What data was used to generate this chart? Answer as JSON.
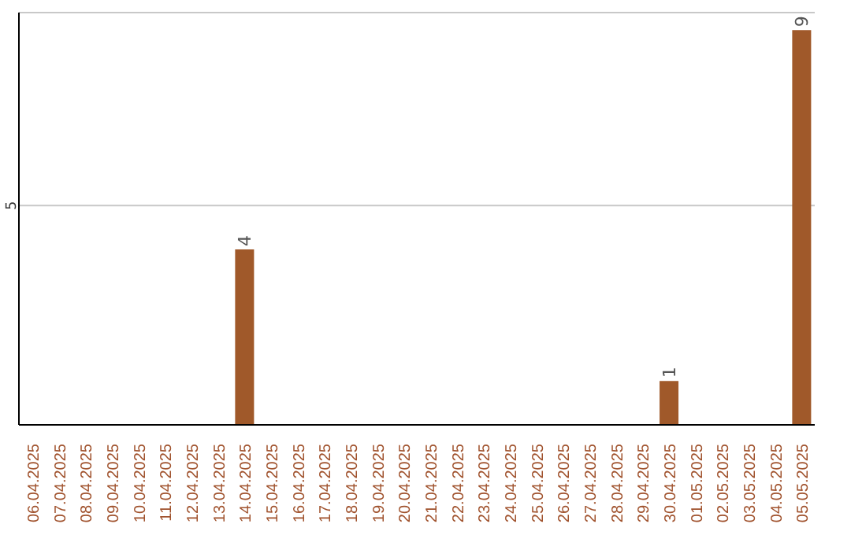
{
  "chart_data": {
    "type": "bar",
    "categories": [
      "06.04.2025",
      "07.04.2025",
      "08.04.2025",
      "09.04.2025",
      "10.04.2025",
      "11.04.2025",
      "12.04.2025",
      "13.04.2025",
      "14.04.2025",
      "15.04.2025",
      "16.04.2025",
      "17.04.2025",
      "18.04.2025",
      "19.04.2025",
      "20.04.2025",
      "21.04.2025",
      "22.04.2025",
      "23.04.2025",
      "24.04.2025",
      "25.04.2025",
      "26.04.2025",
      "27.04.2025",
      "28.04.2025",
      "29.04.2025",
      "30.04.2025",
      "01.05.2025",
      "02.05.2025",
      "03.05.2025",
      "04.05.2025",
      "05.05.2025"
    ],
    "values": [
      0,
      0,
      0,
      0,
      0,
      0,
      0,
      0,
      4,
      0,
      0,
      0,
      0,
      0,
      0,
      0,
      0,
      0,
      0,
      0,
      0,
      0,
      0,
      0,
      1,
      0,
      0,
      0,
      0,
      9
    ],
    "value_labels": [
      null,
      null,
      null,
      null,
      null,
      null,
      null,
      null,
      "4",
      null,
      null,
      null,
      null,
      null,
      null,
      null,
      null,
      null,
      null,
      null,
      null,
      null,
      null,
      null,
      "1",
      null,
      null,
      null,
      null,
      "9"
    ],
    "color": "#a0592a",
    "ylim": [
      0,
      9.4
    ],
    "yticks": [
      5
    ],
    "grid": "y"
  }
}
